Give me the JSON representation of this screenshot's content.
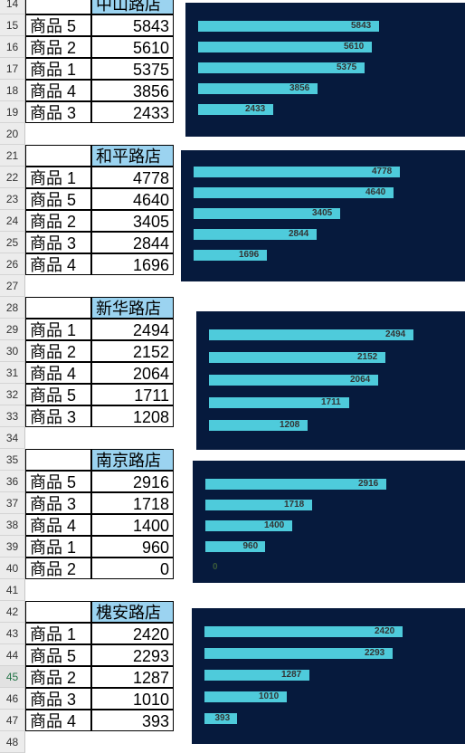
{
  "first_row": 14,
  "active_row": 45,
  "colors": {
    "chart_bg": "#061a3d",
    "bar": "#4ecbdb",
    "store_header_bg": "#9bd3f0"
  },
  "stores": [
    {
      "name": "中山路店",
      "items": [
        {
          "product": "商品 5",
          "value": 5843
        },
        {
          "product": "商品 2",
          "value": 5610
        },
        {
          "product": "商品 1",
          "value": 5375
        },
        {
          "product": "商品 4",
          "value": 3856
        },
        {
          "product": "商品 3",
          "value": 2433
        }
      ]
    },
    {
      "name": "和平路店",
      "items": [
        {
          "product": "商品 1",
          "value": 4778
        },
        {
          "product": "商品 5",
          "value": 4640
        },
        {
          "product": "商品 2",
          "value": 3405
        },
        {
          "product": "商品 3",
          "value": 2844
        },
        {
          "product": "商品 4",
          "value": 1696
        }
      ]
    },
    {
      "name": "新华路店",
      "items": [
        {
          "product": "商品 1",
          "value": 2494
        },
        {
          "product": "商品 2",
          "value": 2152
        },
        {
          "product": "商品 4",
          "value": 2064
        },
        {
          "product": "商品 5",
          "value": 1711
        },
        {
          "product": "商品 3",
          "value": 1208
        }
      ]
    },
    {
      "name": "南京路店",
      "items": [
        {
          "product": "商品 5",
          "value": 2916
        },
        {
          "product": "商品 3",
          "value": 1718
        },
        {
          "product": "商品 4",
          "value": 1400
        },
        {
          "product": "商品 1",
          "value": 960
        },
        {
          "product": "商品 2",
          "value": 0
        }
      ]
    },
    {
      "name": "槐安路店",
      "items": [
        {
          "product": "商品 1",
          "value": 2420
        },
        {
          "product": "商品 5",
          "value": 2293
        },
        {
          "product": "商品 2",
          "value": 1287
        },
        {
          "product": "商品 3",
          "value": 1010
        },
        {
          "product": "商品 4",
          "value": 393
        }
      ]
    }
  ],
  "chart_data": [
    {
      "type": "bar",
      "orientation": "horizontal",
      "categories": [
        "商品 5",
        "商品 2",
        "商品 1",
        "商品 4",
        "商品 3"
      ],
      "values": [
        5843,
        5610,
        5375,
        3856,
        2433
      ],
      "xlim": [
        0,
        6500
      ]
    },
    {
      "type": "bar",
      "orientation": "horizontal",
      "categories": [
        "商品 1",
        "商品 5",
        "商品 2",
        "商品 3",
        "商品 4"
      ],
      "values": [
        4778,
        4640,
        3405,
        2844,
        1696
      ],
      "xlim": [
        0,
        6500
      ]
    },
    {
      "type": "bar",
      "orientation": "horizontal",
      "categories": [
        "商品 1",
        "商品 2",
        "商品 4",
        "商品 5",
        "商品 3"
      ],
      "values": [
        2494,
        2152,
        2064,
        1711,
        1208
      ],
      "xlim": [
        0,
        2800
      ]
    },
    {
      "type": "bar",
      "orientation": "horizontal",
      "categories": [
        "商品 5",
        "商品 3",
        "商品 4",
        "商品 1",
        "商品 2"
      ],
      "values": [
        2916,
        1718,
        1400,
        960,
        0
      ],
      "xlim": [
        0,
        3500
      ]
    },
    {
      "type": "bar",
      "orientation": "horizontal",
      "categories": [
        "商品 1",
        "商品 5",
        "商品 2",
        "商品 3",
        "商品 4"
      ],
      "values": [
        2420,
        2293,
        1287,
        1010,
        393
      ],
      "xlim": [
        0,
        2800
      ]
    }
  ]
}
